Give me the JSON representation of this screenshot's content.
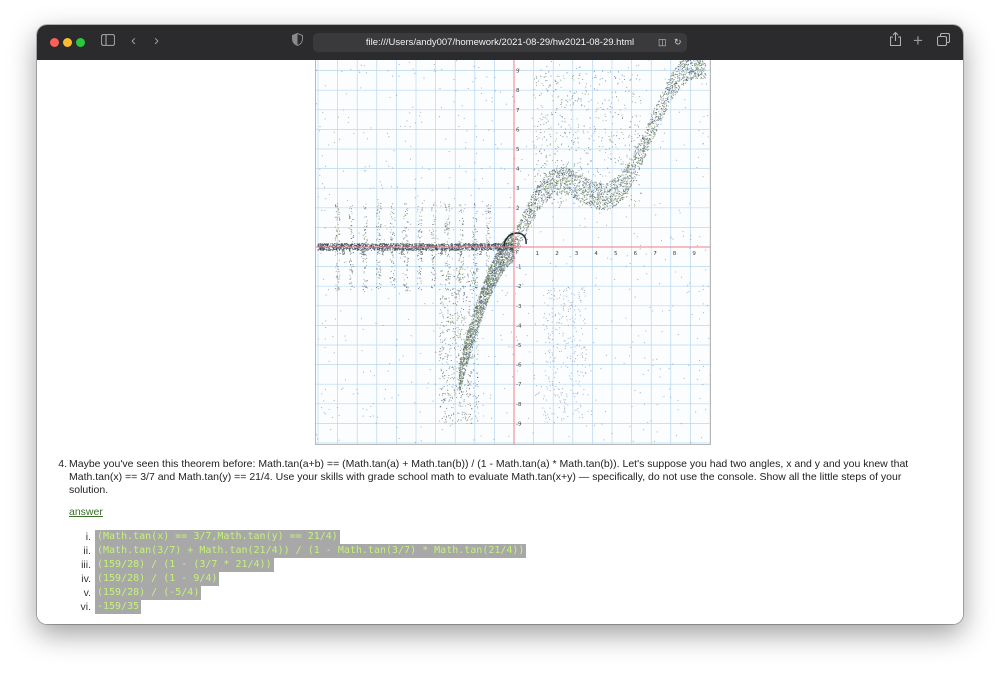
{
  "browser": {
    "url": "file:///Users/andy007/homework/2021-08-29/hw2021-08-29.html"
  },
  "graph": {
    "x_ticks": [
      "-9",
      "-8",
      "-7",
      "-6",
      "-5",
      "-4",
      "-3",
      "-2",
      "-1",
      "1",
      "2",
      "3",
      "4",
      "5",
      "6",
      "7",
      "8",
      "9"
    ],
    "y_ticks": [
      "9",
      "8",
      "7",
      "6",
      "5",
      "4",
      "3",
      "2",
      "1",
      "-1",
      "-2",
      "-3",
      "-4",
      "-5",
      "-6",
      "-7",
      "-8",
      "-9"
    ]
  },
  "question": {
    "number": "4.",
    "text": "Maybe you've seen this theorem before: Math.tan(a+b) == (Math.tan(a) + Math.tan(b)) / (1 - Math.tan(a) * Math.tan(b)). Let's suppose you had two angles, x and y and you knew that Math.tan(x) == 3/7 and Math.tan(y) == 21/4. Use your skills with grade school math to evaluate Math.tan(x+y) — specifically, do not use the console. Show all the little steps of your solution.",
    "answer_link": "answer",
    "steps": [
      {
        "num": "i.",
        "code": "(Math.tan(x) == 3/7,Math.tan(y) == 21/4)"
      },
      {
        "num": "ii.",
        "code": "(Math.tan(3/7) + Math.tan(21/4)) / (1 - Math.tan(3/7) * Math.tan(21/4))"
      },
      {
        "num": "iii.",
        "code": "(159/28) / (1 - (3/7 * 21/4))"
      },
      {
        "num": "iv.",
        "code": "(159/28) / (1 - 9/4)"
      },
      {
        "num": "v.",
        "code": "(159/28) / (-5/4)"
      },
      {
        "num": "vi.",
        "code": "-159/35"
      }
    ]
  },
  "colors": {
    "highlight_bg": "#a8a8a8",
    "highlight_text": "#c6f27a",
    "link": "#3a6e2a",
    "grid": "#b9d8ef",
    "axis": "#f08080"
  }
}
